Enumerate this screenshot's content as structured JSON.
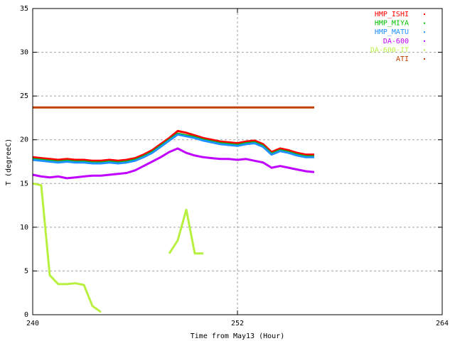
{
  "chart_data": {
    "type": "line",
    "xlabel": "Time from May13 (Hour)",
    "ylabel": "T (degreeC)",
    "xlim": [
      240,
      264
    ],
    "xticks": [
      240,
      252,
      264
    ],
    "ylim": [
      0,
      35
    ],
    "yticks": [
      0,
      5,
      10,
      15,
      20,
      25,
      30,
      35
    ],
    "grid": true,
    "legend": "upper right",
    "x": [
      240,
      240.5,
      241,
      241.5,
      242,
      242.5,
      243,
      243.5,
      244,
      244.5,
      245,
      245.5,
      246,
      246.5,
      247,
      247.5,
      248,
      248.5,
      249,
      249.5,
      250,
      250.5,
      251,
      251.5,
      252,
      252.5,
      253,
      253.5,
      254,
      254.5,
      255,
      255.5,
      256,
      256.5
    ],
    "series": [
      {
        "name": "HMP_ISHI",
        "color": "#ff0000",
        "values": [
          18.0,
          17.9,
          17.8,
          17.7,
          17.8,
          17.7,
          17.7,
          17.6,
          17.6,
          17.7,
          17.6,
          17.7,
          17.9,
          18.3,
          18.8,
          19.5,
          20.2,
          21.0,
          20.8,
          20.5,
          20.2,
          20.0,
          19.8,
          19.7,
          19.6,
          19.8,
          19.9,
          19.5,
          18.6,
          19.0,
          18.8,
          18.5,
          18.3,
          18.3
        ]
      },
      {
        "name": "HMP_MIYA",
        "color": "#00c000",
        "values": [
          17.8,
          17.7,
          17.6,
          17.5,
          17.6,
          17.5,
          17.5,
          17.4,
          17.4,
          17.5,
          17.4,
          17.5,
          17.7,
          18.1,
          18.6,
          19.3,
          20.0,
          20.7,
          20.5,
          20.3,
          20.0,
          19.8,
          19.6,
          19.5,
          19.4,
          19.6,
          19.7,
          19.3,
          18.4,
          18.8,
          18.6,
          18.3,
          18.1,
          18.1
        ]
      },
      {
        "name": "HMP_MATU",
        "color": "#1e90ff",
        "values": [
          17.7,
          17.6,
          17.5,
          17.4,
          17.5,
          17.4,
          17.4,
          17.3,
          17.3,
          17.4,
          17.3,
          17.4,
          17.6,
          18.0,
          18.5,
          19.2,
          19.9,
          20.6,
          20.4,
          20.2,
          19.9,
          19.7,
          19.5,
          19.4,
          19.3,
          19.5,
          19.6,
          19.2,
          18.3,
          18.7,
          18.5,
          18.2,
          18.0,
          18.0
        ]
      },
      {
        "name": "DA-600",
        "color": "#c000ff",
        "values": [
          16.0,
          15.8,
          15.7,
          15.8,
          15.6,
          15.7,
          15.8,
          15.9,
          15.9,
          16.0,
          16.1,
          16.2,
          16.5,
          17.0,
          17.5,
          18.0,
          18.6,
          19.0,
          18.5,
          18.2,
          18.0,
          17.9,
          17.8,
          17.8,
          17.7,
          17.8,
          17.6,
          17.4,
          16.8,
          17.0,
          16.8,
          16.6,
          16.4,
          16.3
        ]
      },
      {
        "name": "DA-600-IT",
        "color": "#b8f040",
        "values": [
          15.0,
          14.8,
          4.5,
          3.5,
          3.5,
          3.6,
          3.4,
          1.0,
          0.3,
          null,
          null,
          null,
          null,
          null,
          null,
          null,
          7.0,
          8.5,
          12.0,
          7.0,
          7.0,
          null,
          null,
          null,
          null,
          null,
          null,
          null,
          null,
          null,
          null,
          null,
          null,
          null
        ]
      },
      {
        "name": "ATI",
        "color": "#c04000",
        "values": [
          23.7,
          23.7,
          23.7,
          23.7,
          23.7,
          23.7,
          23.7,
          23.7,
          23.7,
          23.7,
          23.7,
          23.7,
          23.7,
          23.7,
          23.7,
          23.7,
          23.7,
          23.7,
          23.7,
          23.7,
          23.7,
          23.7,
          23.7,
          23.7,
          23.7,
          23.7,
          23.7,
          23.7,
          23.7,
          23.7,
          23.7,
          23.7,
          23.7,
          23.7
        ]
      }
    ]
  }
}
